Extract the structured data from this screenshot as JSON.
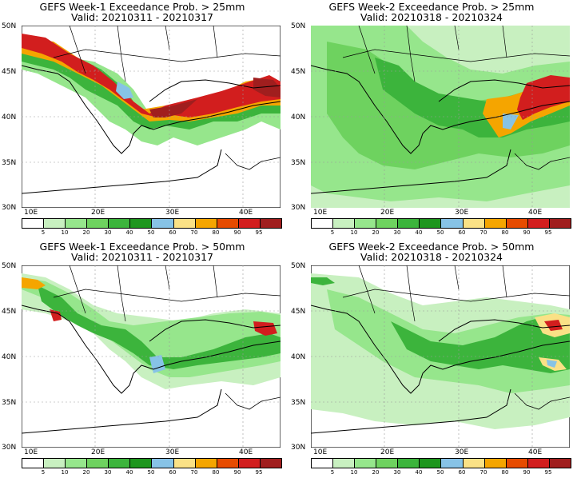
{
  "panels": [
    {
      "title": "GEFS Week-1 Exceedance Prob. > 25mm",
      "valid": "Valid: 20210311 - 20210317"
    },
    {
      "title": "GEFS Week-2 Exceedance Prob. > 25mm",
      "valid": "Valid: 20210318 - 20210324"
    },
    {
      "title": "GEFS Week-1 Exceedance Prob. > 50mm",
      "valid": "Valid: 20210311 - 20210317"
    },
    {
      "title": "GEFS Week-2 Exceedance Prob. > 50mm",
      "valid": "Valid: 20210318 - 20210324"
    }
  ],
  "lat_labels": [
    "50N",
    "45N",
    "40N",
    "35N",
    "30N"
  ],
  "lon_labels": [
    "10E",
    "20E",
    "30E",
    "40E"
  ],
  "colorbar": {
    "labels": [
      "5",
      "10",
      "20",
      "30",
      "40",
      "50",
      "60",
      "70",
      "80",
      "90",
      "95"
    ],
    "colors": [
      "#ffffff",
      "#c8f0c0",
      "#96e68c",
      "#6ed25f",
      "#3cb43c",
      "#1e961e",
      "#87c3e6",
      "#fae186",
      "#f5a500",
      "#e64b00",
      "#d21e1e",
      "#a01e1e"
    ]
  },
  "legend": {
    "white": "#ffffff",
    "land_outline": "#000000"
  }
}
